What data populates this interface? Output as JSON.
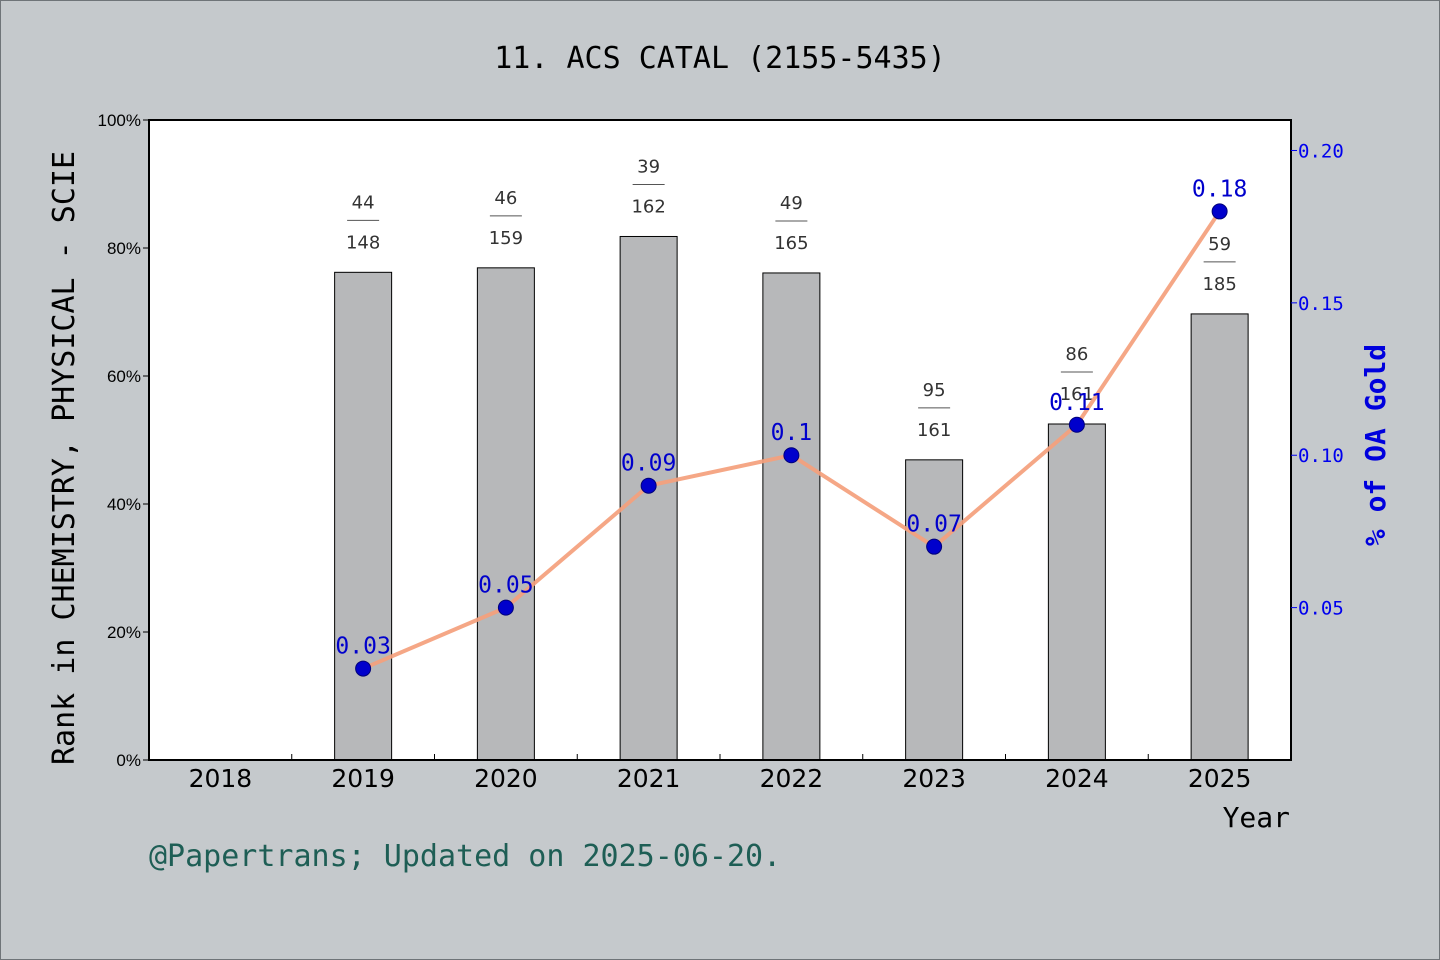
{
  "title": "11. ACS CATAL (2155-5435)",
  "footer": "@Papertrans; Updated on 2025-06-20.",
  "colors": {
    "bar_fill": "#b7b8ba",
    "line": "#f4a07c",
    "marker": "#0000cc",
    "right_axis": "#0000ee",
    "footer": "#1e5e55",
    "background": "#c5c9cc",
    "plot_background": "#ffffff"
  },
  "chart_data": {
    "type": "bar",
    "title": "11. ACS CATAL (2155-5435)",
    "xlabel": "Year",
    "ylabel": "Rank in CHEMISTRY, PHYSICAL - SCIE",
    "y2label": "% of OA Gold",
    "categories": [
      "2018",
      "2019",
      "2020",
      "2021",
      "2022",
      "2023",
      "2024",
      "2025"
    ],
    "ylim": [
      0,
      100
    ],
    "y_ticks": [
      "0%",
      "20%",
      "40%",
      "60%",
      "80%",
      "100%"
    ],
    "y2lim": [
      0,
      0.21
    ],
    "y2_ticks": [
      "0.05",
      "0.10",
      "0.15",
      "0.20"
    ],
    "grid": false,
    "series": [
      {
        "kind": "bar",
        "axis": "left",
        "values": [
          null,
          76.2,
          76.9,
          81.8,
          76.1,
          46.9,
          52.5,
          69.7
        ],
        "rank": [
          null,
          "44",
          "46",
          "39",
          "49",
          "95",
          "86",
          "59"
        ],
        "total": [
          null,
          "148",
          "159",
          "162",
          "165",
          "161",
          "161",
          "185"
        ]
      },
      {
        "kind": "line",
        "axis": "right",
        "values": [
          null,
          0.03,
          0.05,
          0.09,
          0.1,
          0.07,
          0.11,
          0.18
        ],
        "labels": [
          null,
          "0.03",
          "0.05",
          "0.09",
          "0.1",
          "0.07",
          "0.11",
          "0.18"
        ]
      }
    ]
  }
}
